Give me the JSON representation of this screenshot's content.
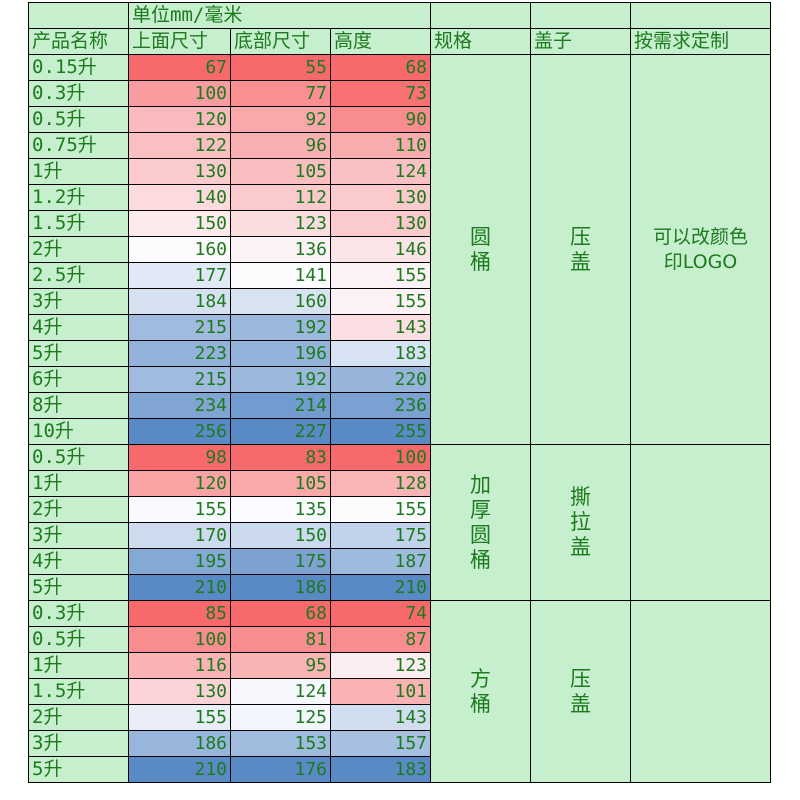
{
  "header": {
    "unit_label": "单位mm/毫米",
    "col_name": "产品名称",
    "col_top": "上面尺寸",
    "col_bottom": "底部尺寸",
    "col_height": "高度",
    "col_spec": "规格",
    "col_lid": "盖子",
    "col_custom": "按需求定制"
  },
  "groups": [
    {
      "spec": "圆桶",
      "lid": "压盖",
      "custom": [
        "可以改颜色",
        "印LOGO"
      ],
      "rows": [
        {
          "name": "0.15升",
          "top": 67,
          "bottom": 55,
          "height": 68
        },
        {
          "name": "0.3升",
          "top": 100,
          "bottom": 77,
          "height": 73
        },
        {
          "name": "0.5升",
          "top": 120,
          "bottom": 92,
          "height": 90
        },
        {
          "name": "0.75升",
          "top": 122,
          "bottom": 96,
          "height": 110
        },
        {
          "name": "1升",
          "top": 130,
          "bottom": 105,
          "height": 124
        },
        {
          "name": "1.2升",
          "top": 140,
          "bottom": 112,
          "height": 130
        },
        {
          "name": "1.5升",
          "top": 150,
          "bottom": 123,
          "height": 130
        },
        {
          "name": "2升",
          "top": 160,
          "bottom": 136,
          "height": 146
        },
        {
          "name": "2.5升",
          "top": 177,
          "bottom": 141,
          "height": 155
        },
        {
          "name": "3升",
          "top": 184,
          "bottom": 160,
          "height": 155
        },
        {
          "name": "4升",
          "top": 215,
          "bottom": 192,
          "height": 143
        },
        {
          "name": "5升",
          "top": 223,
          "bottom": 196,
          "height": 183
        },
        {
          "name": "6升",
          "top": 215,
          "bottom": 192,
          "height": 220
        },
        {
          "name": "8升",
          "top": 234,
          "bottom": 214,
          "height": 236
        },
        {
          "name": "10升",
          "top": 256,
          "bottom": 227,
          "height": 255
        }
      ]
    },
    {
      "spec": "加厚圆桶",
      "lid": "撕拉盖",
      "custom": [],
      "rows": [
        {
          "name": "0.5升",
          "top": 98,
          "bottom": 83,
          "height": 100
        },
        {
          "name": "1升",
          "top": 120,
          "bottom": 105,
          "height": 128
        },
        {
          "name": "2升",
          "top": 155,
          "bottom": 135,
          "height": 155
        },
        {
          "name": "3升",
          "top": 170,
          "bottom": 150,
          "height": 175
        },
        {
          "name": "4升",
          "top": 195,
          "bottom": 175,
          "height": 187
        },
        {
          "name": "5升",
          "top": 210,
          "bottom": 186,
          "height": 210
        }
      ]
    },
    {
      "spec": "方桶",
      "lid": "压盖",
      "custom": [],
      "rows": [
        {
          "name": "0.3升",
          "top": 85,
          "bottom": 68,
          "height": 74
        },
        {
          "name": "0.5升",
          "top": 100,
          "bottom": 81,
          "height": 87
        },
        {
          "name": "1升",
          "top": 116,
          "bottom": 95,
          "height": 123
        },
        {
          "name": "1.5升",
          "top": 130,
          "bottom": 124,
          "height": 101
        },
        {
          "name": "2升",
          "top": 155,
          "bottom": 125,
          "height": 143
        },
        {
          "name": "3升",
          "top": 186,
          "bottom": 153,
          "height": 157
        },
        {
          "name": "5升",
          "top": 210,
          "bottom": 176,
          "height": 183
        }
      ]
    }
  ],
  "colors": {
    "sheet_green": "#c6efce",
    "text_green": "#1e7a1e",
    "scale_low": "#f8696b",
    "scale_mid": "#fcfcff",
    "scale_high": "#5a8ac6"
  }
}
